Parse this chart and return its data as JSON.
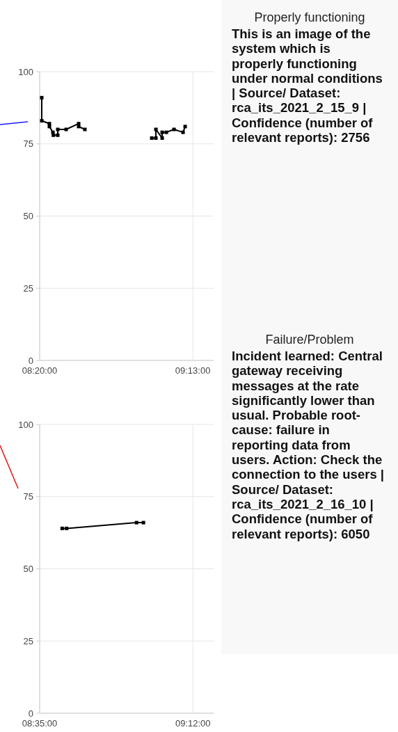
{
  "chart_data": [
    {
      "type": "line",
      "series": [
        {
          "color": "#000000",
          "x": [
            8.3454,
            8.3454,
            8.3895,
            8.3895,
            8.4097,
            8.4125,
            8.4377,
            8.4377,
            8.4859,
            8.5582,
            8.5582,
            8.5943
          ],
          "values": [
            91,
            83,
            82,
            81,
            79,
            78,
            78,
            80,
            80,
            82,
            81,
            80
          ]
        },
        {
          "color": "#000000",
          "x": [
            8.9798,
            9.0038,
            9.0038,
            9.04,
            9.04,
            9.064,
            9.1083,
            9.1605,
            9.1725
          ],
          "values": [
            77,
            77,
            80,
            77,
            79,
            79,
            80,
            79,
            81
          ]
        }
      ],
      "marker": "square",
      "xlim": [
        8.333333,
        9.336667
      ],
      "xticks": [
        {
          "value": 8.333333,
          "label": "08:20:00"
        },
        {
          "value": 9.216667,
          "label": "09:13:00"
        }
      ],
      "ylim": [
        0,
        100
      ],
      "yticks": [
        0,
        25,
        50,
        75,
        100
      ],
      "grid": true
    },
    {
      "type": "other",
      "title": "Properly functioning",
      "annotations": [
        "This is an image of the system which is properly functioning under normal conditions | Source/ Dataset: rca_its_2021_2_15_9 | Confidence (number of relevant reports): 2756"
      ]
    },
    {
      "type": "line",
      "x": [
        8.6739,
        8.6918,
        8.9733,
        9.001
      ],
      "values": [
        64,
        64,
        66,
        66
      ],
      "color": "#000000",
      "marker": "square",
      "xlim": [
        8.583333,
        9.283333
      ],
      "xticks": [
        {
          "value": 8.583333,
          "label": "08:35:00"
        },
        {
          "value": 9.2,
          "label": "09:12:00"
        }
      ],
      "ylim": [
        0,
        100
      ],
      "yticks": [
        0,
        25,
        50,
        75,
        100
      ],
      "grid": true
    },
    {
      "type": "other",
      "title": "Failure/Problem",
      "annotations": [
        "Incident learned: Central gateway receiving messages at the rate significantly lower than usual. Probable root-cause: failure in reporting data from users. Action: Check the connection to the users | Source/ Dataset: rca_its_2021_2_16_10 | Confidence (number of relevant reports): 6050"
      ]
    }
  ]
}
